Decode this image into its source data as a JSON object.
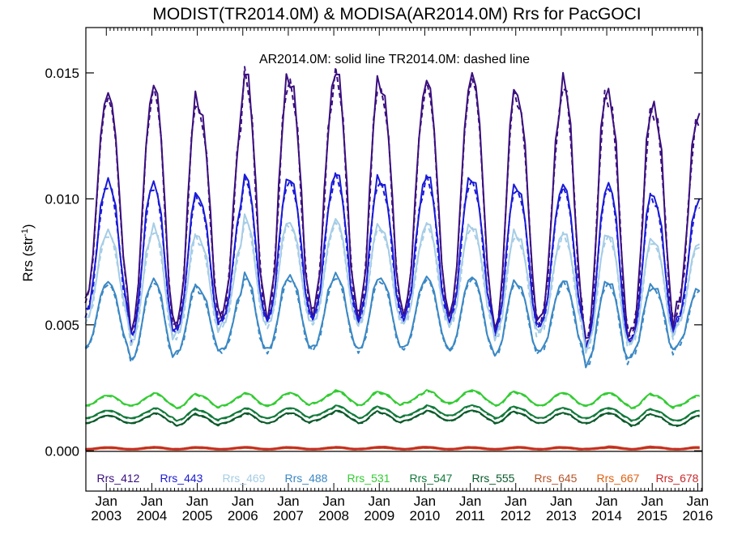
{
  "chart_data": {
    "type": "line",
    "title": "MODIST(TR2014.0M) & MODISA(AR2014.0M)  Rrs for PacGOCI",
    "ylabel": "Rrs (str",
    "ylabel_sup": "-1",
    "ylabel_close": ")",
    "annotation": "AR2014.0M: solid line   TR2014.0M: dashed line",
    "ylim": [
      -0.0016,
      0.0168
    ],
    "xlim": [
      2002.55,
      2016.1
    ],
    "yticks": [
      0.0,
      0.005,
      0.01,
      0.015
    ],
    "ytick_labels": [
      "0.000",
      "0.005",
      "0.010",
      "0.015"
    ],
    "xtick_years": [
      2003,
      2004,
      2005,
      2006,
      2007,
      2008,
      2009,
      2010,
      2011,
      2012,
      2013,
      2014,
      2015,
      2016
    ],
    "xtick_month": "Jan",
    "xtick_labels": [
      "2003",
      "2004",
      "2005",
      "2006",
      "2007",
      "2008",
      "2009",
      "2010",
      "2011",
      "2012",
      "2013",
      "2014",
      "2015",
      "2016"
    ],
    "grid": false,
    "legend_position": "bottom",
    "zero_line": true,
    "series": [
      {
        "name": "Rrs_412",
        "color": "#3b0f7e",
        "peaks": [
          0.0142,
          0.0146,
          0.0136,
          0.0152,
          0.0147,
          0.0152,
          0.0144,
          0.0148,
          0.015,
          0.014,
          0.0148,
          0.0141,
          0.0136,
          0.0132
        ],
        "troughs": [
          0.006,
          0.0047,
          0.005,
          0.0054,
          0.0054,
          0.0055,
          0.0054,
          0.0055,
          0.0054,
          0.0048,
          0.0052,
          0.0042,
          0.0046,
          0.0057
        ]
      },
      {
        "name": "Rrs_443",
        "color": "#1a1ad8",
        "peaks": [
          0.0107,
          0.0106,
          0.01,
          0.011,
          0.0108,
          0.0111,
          0.0107,
          0.011,
          0.0108,
          0.0104,
          0.0106,
          0.0106,
          0.01,
          0.0099
        ],
        "troughs": [
          0.0055,
          0.0045,
          0.0048,
          0.0052,
          0.0052,
          0.0053,
          0.0052,
          0.0053,
          0.0052,
          0.0047,
          0.005,
          0.0041,
          0.0044,
          0.0052
        ]
      },
      {
        "name": "Rrs_469",
        "color": "#a6cde6",
        "peaks": [
          0.0087,
          0.0089,
          0.0084,
          0.0093,
          0.009,
          0.0092,
          0.0088,
          0.0091,
          0.0089,
          0.0085,
          0.0087,
          0.0086,
          0.0083,
          0.0082
        ],
        "troughs": [
          0.0052,
          0.0043,
          0.0046,
          0.005,
          0.005,
          0.0051,
          0.005,
          0.0051,
          0.005,
          0.0045,
          0.0048,
          0.004,
          0.0043,
          0.005
        ]
      },
      {
        "name": "Rrs_488",
        "color": "#3b88c4",
        "peaks": [
          0.0067,
          0.0068,
          0.0064,
          0.007,
          0.0069,
          0.007,
          0.0068,
          0.0069,
          0.0069,
          0.0066,
          0.0068,
          0.0067,
          0.0065,
          0.0064
        ],
        "troughs": [
          0.0041,
          0.0036,
          0.0039,
          0.004,
          0.004,
          0.0041,
          0.004,
          0.0041,
          0.004,
          0.0038,
          0.004,
          0.0034,
          0.0038,
          0.0042
        ]
      },
      {
        "name": "Rrs_531",
        "color": "#33cc33",
        "peaks": [
          0.0022,
          0.0023,
          0.0022,
          0.0023,
          0.0023,
          0.0024,
          0.0023,
          0.0024,
          0.0024,
          0.0023,
          0.0023,
          0.0023,
          0.0022,
          0.0022
        ],
        "troughs": [
          0.0018,
          0.0018,
          0.0017,
          0.0018,
          0.0018,
          0.0019,
          0.0018,
          0.0019,
          0.0019,
          0.0018,
          0.0018,
          0.0018,
          0.0017,
          0.0018
        ]
      },
      {
        "name": "Rrs_547",
        "color": "#137a3b",
        "peaks": [
          0.0016,
          0.0017,
          0.0016,
          0.0017,
          0.0017,
          0.0018,
          0.0017,
          0.0018,
          0.0018,
          0.0017,
          0.0017,
          0.0017,
          0.0016,
          0.0016
        ],
        "troughs": [
          0.0013,
          0.0013,
          0.0012,
          0.0013,
          0.0013,
          0.0014,
          0.0013,
          0.0014,
          0.0014,
          0.0013,
          0.0013,
          0.0013,
          0.0012,
          0.0012
        ]
      },
      {
        "name": "Rrs_555",
        "color": "#0b5a2a",
        "peaks": [
          0.0014,
          0.0015,
          0.0014,
          0.0015,
          0.0015,
          0.0016,
          0.0015,
          0.0016,
          0.0016,
          0.0015,
          0.0015,
          0.0015,
          0.0014,
          0.0014
        ],
        "troughs": [
          0.0011,
          0.0011,
          0.001,
          0.0011,
          0.0011,
          0.0012,
          0.0011,
          0.0012,
          0.0012,
          0.0011,
          0.0011,
          0.0011,
          0.001,
          0.001
        ]
      },
      {
        "name": "Rrs_645",
        "color": "#b5542a",
        "peaks": [
          0.00015,
          0.00016,
          0.00015,
          0.00016,
          0.00015,
          0.00016,
          0.00017,
          0.00016,
          0.00015,
          0.00016,
          0.00015,
          0.00018,
          0.00016,
          0.00015
        ],
        "troughs": [
          8e-05,
          8e-05,
          8e-05,
          8e-05,
          8e-05,
          8e-05,
          9e-05,
          8e-05,
          8e-05,
          8e-05,
          8e-05,
          9e-05,
          8e-05,
          8e-05
        ]
      },
      {
        "name": "Rrs_667",
        "color": "#e06010",
        "peaks": [
          0.0001,
          0.00011,
          0.0001,
          0.00011,
          0.0001,
          0.00011,
          0.00011,
          0.00011,
          0.0001,
          0.00011,
          0.0001,
          0.00012,
          0.00011,
          0.0001
        ],
        "troughs": [
          4e-05,
          4e-05,
          4e-05,
          4e-05,
          4e-05,
          4e-05,
          5e-05,
          4e-05,
          4e-05,
          4e-05,
          4e-05,
          5e-05,
          4e-05,
          4e-05
        ]
      },
      {
        "name": "Rrs_678",
        "color": "#c8282a",
        "peaks": [
          0.00012,
          0.00013,
          0.00012,
          0.00013,
          0.00012,
          0.00013,
          0.00013,
          0.00013,
          0.00012,
          0.00013,
          0.00012,
          0.00014,
          0.00013,
          0.00012
        ],
        "troughs": [
          6e-05,
          6e-05,
          6e-05,
          6e-05,
          6e-05,
          6e-05,
          7e-05,
          6e-05,
          6e-05,
          6e-05,
          6e-05,
          7e-05,
          6e-05,
          6e-05
        ]
      }
    ]
  }
}
